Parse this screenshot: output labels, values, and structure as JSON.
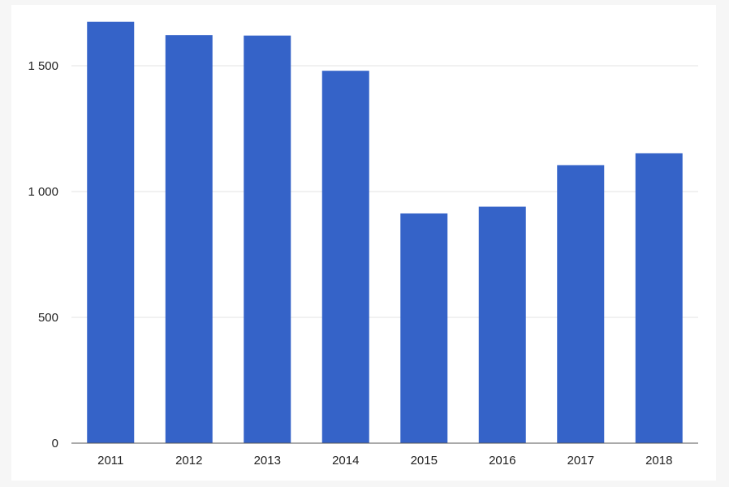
{
  "chart_data": {
    "type": "bar",
    "categories": [
      "2011",
      "2012",
      "2013",
      "2014",
      "2015",
      "2016",
      "2017",
      "2018"
    ],
    "values": [
      1675,
      1622,
      1620,
      1480,
      913,
      940,
      1105,
      1152
    ],
    "title": "",
    "xlabel": "",
    "ylabel": "",
    "ylim": [
      0,
      1700
    ],
    "yticks": [
      0,
      500,
      1000,
      1500
    ],
    "ytick_labels": [
      "0",
      "500",
      "1 000",
      "1 500"
    ],
    "grid": true,
    "legend": "none",
    "colors": {
      "bar": "#3563c8",
      "grid": "#e3e3e3",
      "axis": "#555555"
    }
  }
}
